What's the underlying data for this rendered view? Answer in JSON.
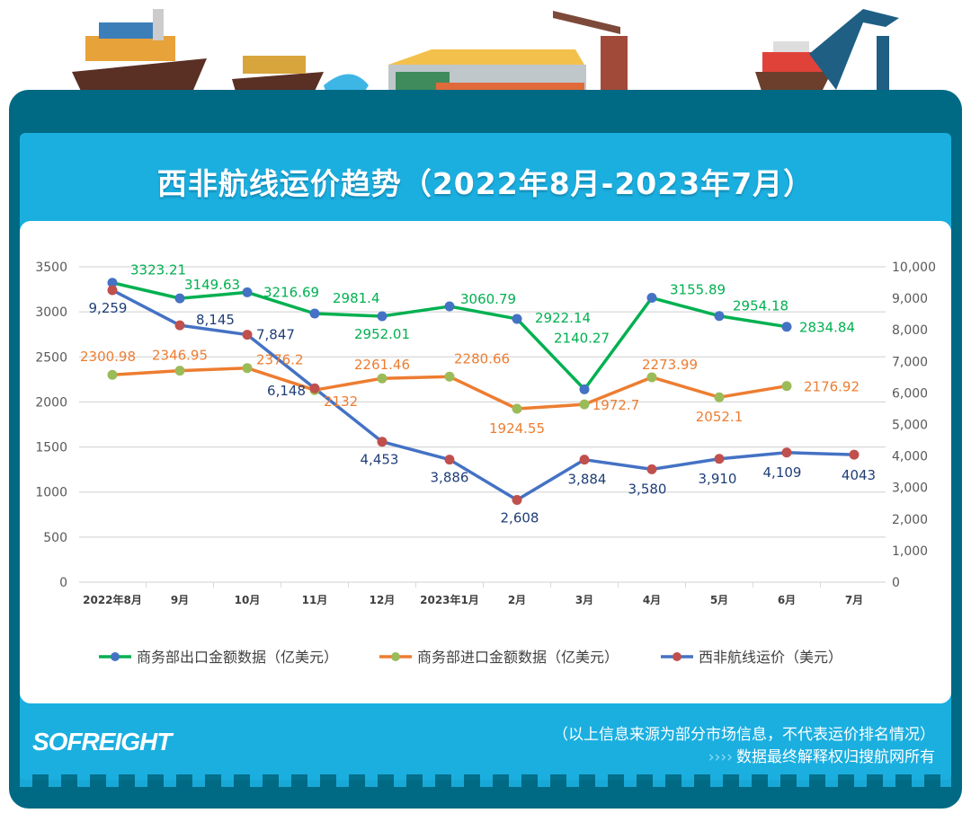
{
  "title": "西非航线运价趋势（2022年8月-2023年7月）",
  "chart_data": {
    "type": "line",
    "categories": [
      "2022年8月",
      "9月",
      "10月",
      "11月",
      "12月",
      "2023年1月",
      "2月",
      "3月",
      "4月",
      "5月",
      "6月",
      "7月"
    ],
    "y_left": {
      "range": [
        0,
        3500
      ],
      "ticks": [
        "0",
        "500",
        "1000",
        "1500",
        "2000",
        "2500",
        "3000",
        "3500"
      ]
    },
    "y_right": {
      "range": [
        0,
        10000
      ],
      "ticks": [
        "0",
        "1,000",
        "2,000",
        "3,000",
        "4,000",
        "5,000",
        "6,000",
        "7,000",
        "8,000",
        "9,000",
        "10,000"
      ]
    },
    "grid": true,
    "legend": "bottom",
    "series": [
      {
        "name": "商务部出口金额数据（亿美元）",
        "axis": "left",
        "color": "#00B050",
        "marker": "#4472C4",
        "values": [
          3323.21,
          3149.63,
          3216.69,
          2981.4,
          2952.01,
          3060.79,
          2922.14,
          2140.27,
          3155.89,
          2954.18,
          2834.84,
          null
        ],
        "labels": [
          "3323.21",
          "3149.63",
          "3216.69",
          "2981.4",
          "2952.01",
          "3060.79",
          "2922.14",
          "2140.27",
          "3155.89",
          "2954.18",
          "2834.84",
          null
        ]
      },
      {
        "name": "商务部进口金额数据（亿美元）",
        "axis": "left",
        "color": "#ED7D31",
        "marker": "#9BBB59",
        "values": [
          2300.98,
          2346.95,
          2376.2,
          2132,
          2261.46,
          2280.66,
          1924.55,
          1972.7,
          2273.99,
          2052.1,
          2176.92,
          null
        ],
        "labels": [
          "2300.98",
          "2346.95",
          "2376.2",
          "2132",
          "2261.46",
          "2280.66",
          "1924.55",
          "1972.7",
          "2273.99",
          "2052.1",
          "2176.92",
          null
        ]
      },
      {
        "name": "西非航线运价（美元）",
        "axis": "right",
        "color": "#4472C4",
        "marker": "#C0504D",
        "values": [
          9259,
          8145,
          7847,
          6148,
          4453,
          3886,
          2608,
          3884,
          3580,
          3910,
          4109,
          4043
        ],
        "labels": [
          "9,259",
          "8,145",
          "7,847",
          "6,148",
          "4,453",
          "3,886",
          "2,608",
          "3,884",
          "3,580",
          "3,910",
          "4,109",
          "4043"
        ]
      }
    ]
  },
  "footer": {
    "logo": "SOFREIGHT",
    "note": "（以上信息来源为部分市场信息，不代表运价排名情况）",
    "chevrons": "››››",
    "rights": "数据最终解释权归搜航网所有"
  }
}
